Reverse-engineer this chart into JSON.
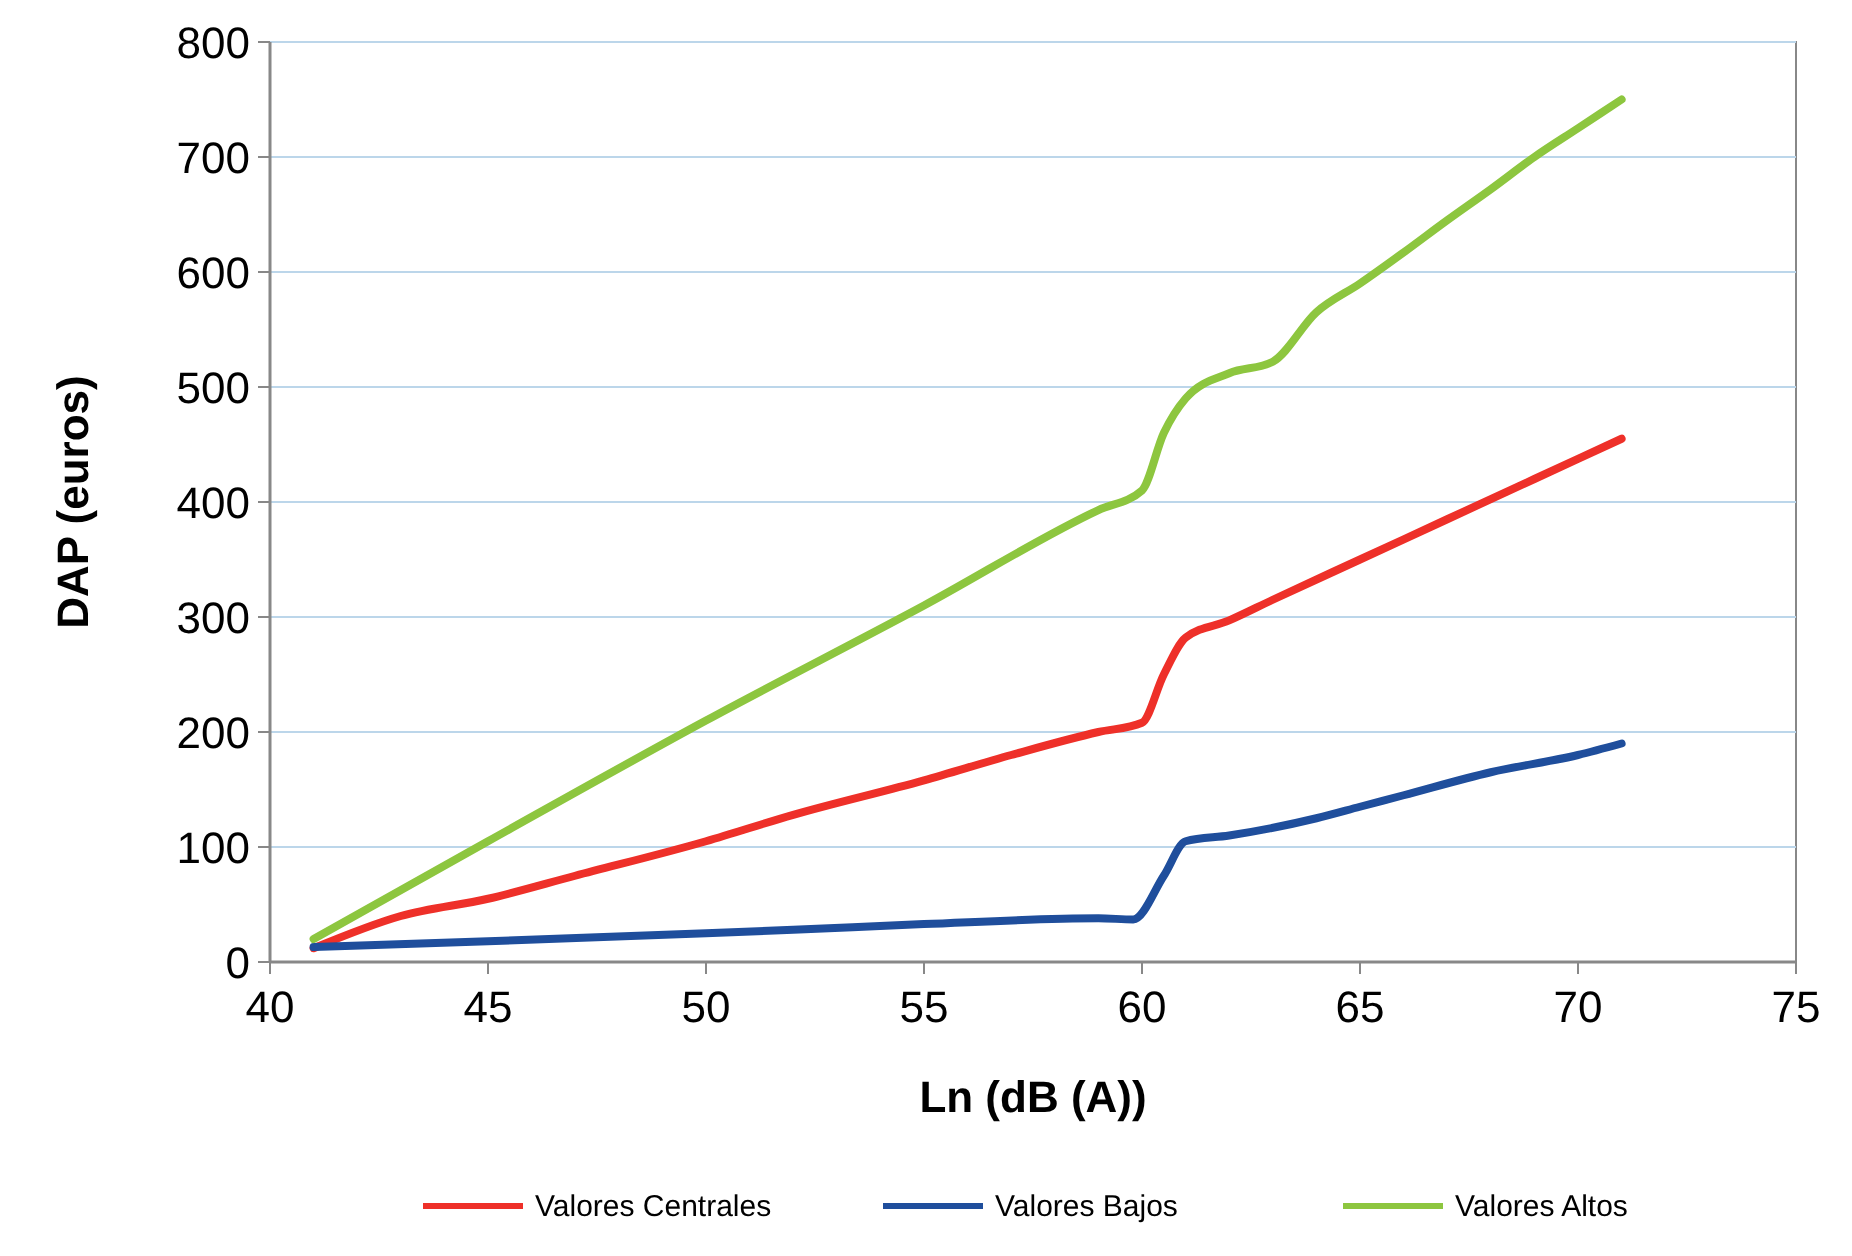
{
  "chart_data": {
    "type": "line",
    "xlabel": "Ln (dB (A))",
    "ylabel": "DAP (euros)",
    "xlim": [
      40,
      75
    ],
    "xticks": [
      40,
      45,
      50,
      55,
      60,
      65,
      70,
      75
    ],
    "ylim": [
      0,
      800
    ],
    "yticks": [
      0,
      100,
      200,
      300,
      400,
      500,
      600,
      700,
      800
    ],
    "grid": "y",
    "legend": "bottom",
    "marker": "none",
    "line_style": "solid",
    "series": [
      {
        "name": "Valores Centrales",
        "color": "#ee3029",
        "x": [
          41,
          43,
          45,
          47,
          50,
          52,
          55,
          57,
          59,
          60,
          60.5,
          61,
          62,
          63,
          65,
          67,
          69,
          71
        ],
        "values": [
          12,
          40,
          55,
          75,
          105,
          128,
          158,
          180,
          200,
          208,
          250,
          282,
          297,
          315,
          350,
          385,
          420,
          455
        ]
      },
      {
        "name": "Valores Bajos",
        "color": "#1f4e9c",
        "x": [
          41,
          45,
          50,
          52,
          55,
          59,
          59.8,
          60.5,
          61,
          62,
          64,
          65,
          66,
          68,
          70,
          71
        ],
        "values": [
          13,
          18,
          25,
          28,
          33,
          38,
          37,
          75,
          105,
          110,
          125,
          135,
          145,
          165,
          180,
          190
        ]
      },
      {
        "name": "Valores Altos",
        "color": "#8dc63f",
        "x": [
          41,
          45,
          50,
          55,
          59,
          60,
          60.5,
          61,
          62,
          63,
          64,
          65,
          66,
          67,
          68,
          69,
          70,
          71
        ],
        "values": [
          20,
          105,
          210,
          310,
          393,
          410,
          460,
          490,
          512,
          522,
          565,
          590,
          617,
          645,
          672,
          700,
          725,
          750
        ]
      }
    ]
  }
}
